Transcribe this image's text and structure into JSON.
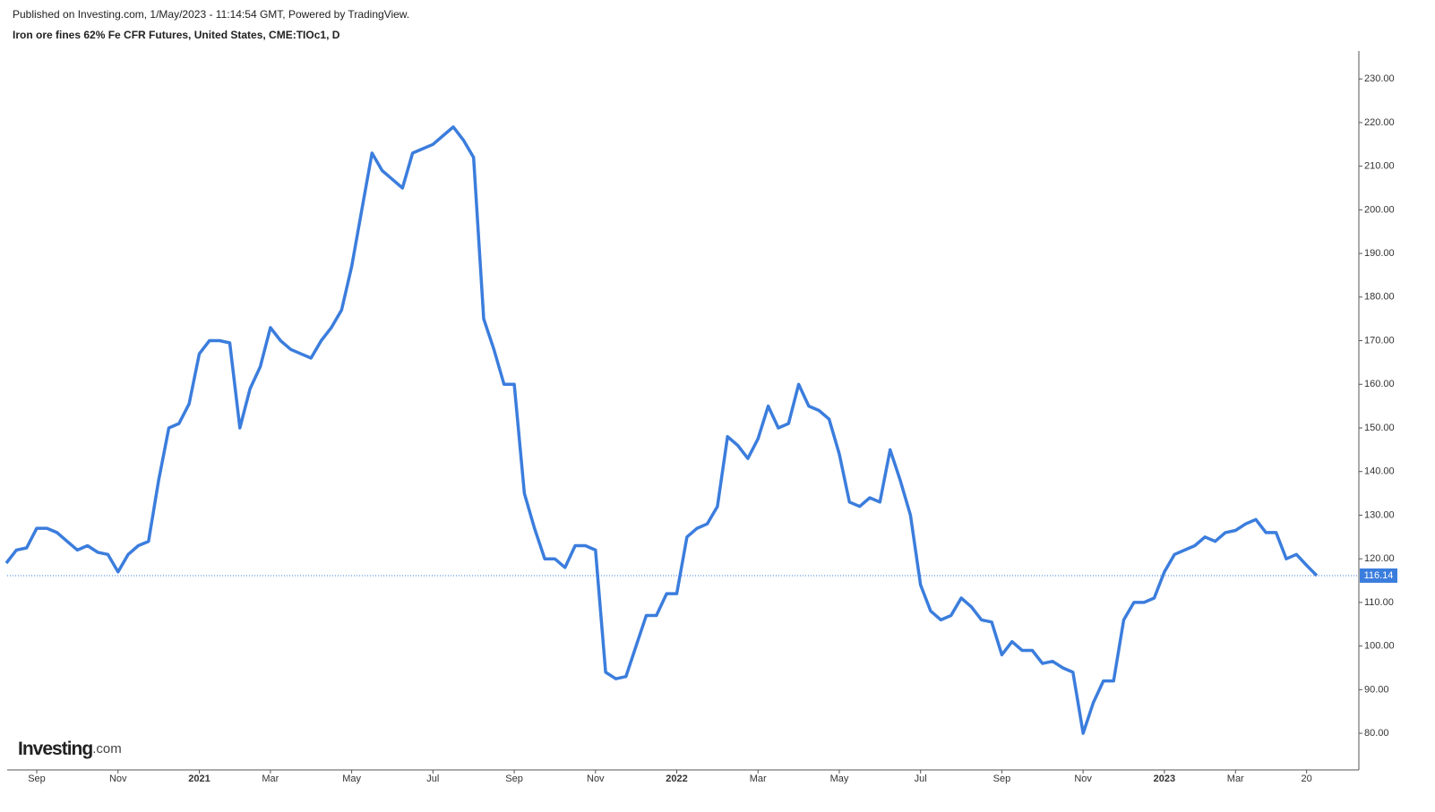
{
  "header": {
    "published": "Published on Investing.com, 1/May/2023 - 11:14:54 GMT, Powered by TradingView.",
    "instrument": "Iron ore fines 62% Fe CFR Futures, United States, CME:TIOc1, D",
    "logo": "Investing",
    "logo_suffix": ".com"
  },
  "chart_data": {
    "type": "line",
    "categories": [
      null,
      null,
      null,
      "Sep",
      null,
      null,
      null,
      null,
      null,
      null,
      null,
      "Nov",
      null,
      null,
      null,
      null,
      null,
      null,
      null,
      "2021",
      null,
      null,
      null,
      null,
      null,
      null,
      "Mar",
      null,
      null,
      null,
      null,
      null,
      null,
      null,
      "May",
      null,
      null,
      null,
      null,
      null,
      null,
      null,
      "Jul",
      null,
      null,
      null,
      null,
      null,
      null,
      null,
      "Sep",
      null,
      null,
      null,
      null,
      null,
      null,
      null,
      "Nov",
      null,
      null,
      null,
      null,
      null,
      null,
      null,
      "2022",
      null,
      null,
      null,
      null,
      null,
      null,
      null,
      "Mar",
      null,
      null,
      null,
      null,
      null,
      null,
      null,
      "May",
      null,
      null,
      null,
      null,
      null,
      null,
      null,
      "Jul",
      null,
      null,
      null,
      null,
      null,
      null,
      null,
      "Sep",
      null,
      null,
      null,
      null,
      null,
      null,
      null,
      "Nov",
      null,
      null,
      null,
      null,
      null,
      null,
      null,
      "2023",
      null,
      null,
      null,
      null,
      null,
      null,
      "Mar",
      null,
      null,
      null,
      null,
      null,
      null,
      "20",
      null
    ],
    "series": [
      {
        "name": "TIOc1",
        "color": "#3b7ddd",
        "values": [
          119,
          122,
          122.5,
          127,
          127,
          126,
          124,
          122,
          123,
          121.5,
          121,
          117,
          121,
          123,
          124,
          138,
          150,
          151,
          155.5,
          167,
          170,
          170,
          169.5,
          150,
          159,
          164,
          173,
          170,
          168,
          167,
          166,
          170,
          173,
          177,
          187,
          200,
          213,
          209,
          207,
          205,
          213,
          214,
          215,
          217,
          219,
          216,
          212,
          175,
          168,
          160,
          160,
          135,
          127,
          120,
          120,
          118,
          123,
          123,
          122,
          94,
          92.5,
          93,
          100,
          107,
          107,
          112,
          112,
          125,
          127,
          128,
          132,
          148,
          146,
          143,
          147.5,
          155,
          150,
          151,
          160,
          155,
          154,
          152,
          144,
          133,
          132,
          134,
          133,
          145,
          138,
          130,
          114,
          108,
          106,
          107,
          111,
          109,
          106,
          105.5,
          98,
          101,
          99,
          99,
          96,
          96.5,
          95,
          94,
          80,
          87,
          92,
          92,
          106,
          110,
          110,
          111,
          117,
          121,
          122,
          123,
          125,
          124,
          126,
          126.5,
          128,
          129,
          126,
          126,
          120,
          121,
          118.5,
          116.14
        ]
      }
    ],
    "ylim": [
      71.6,
      236.4
    ],
    "yticks": [
      {
        "value": 80,
        "label": "80.00"
      },
      {
        "value": 90,
        "label": "90.00"
      },
      {
        "value": 100,
        "label": "100.00"
      },
      {
        "value": 110,
        "label": "110.00"
      },
      {
        "value": 120,
        "label": "120.00"
      },
      {
        "value": 130,
        "label": "130.00"
      },
      {
        "value": 140,
        "label": "140.00"
      },
      {
        "value": 150,
        "label": "150.00"
      },
      {
        "value": 160,
        "label": "160.00"
      },
      {
        "value": 170,
        "label": "170.00"
      },
      {
        "value": 180,
        "label": "180.00"
      },
      {
        "value": 190,
        "label": "190.00"
      },
      {
        "value": 200,
        "label": "200.00"
      },
      {
        "value": 210,
        "label": "210.00"
      },
      {
        "value": 220,
        "label": "220.00"
      },
      {
        "value": 230,
        "label": "230.00"
      }
    ],
    "grid": false
  }
}
